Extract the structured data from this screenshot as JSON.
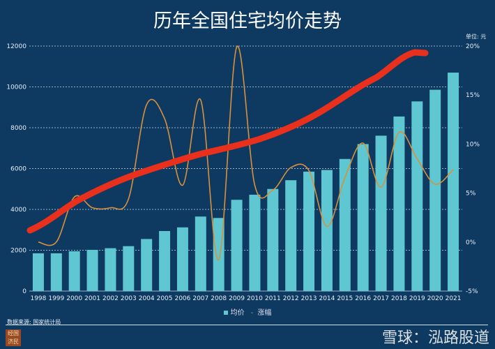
{
  "chart_data": {
    "type": "bar+line",
    "title": "历年全国住宅均价走势",
    "unit_label": "单位: 元",
    "categories": [
      "1998",
      "1999",
      "2000",
      "2001",
      "2002",
      "2003",
      "2004",
      "2005",
      "2006",
      "2007",
      "2008",
      "2009",
      "2010",
      "2011",
      "2012",
      "2013",
      "2014",
      "2015",
      "2016",
      "2017",
      "2018",
      "2019",
      "2020",
      "2021"
    ],
    "series": [
      {
        "name": "均价",
        "type": "bar",
        "axis": "left",
        "color": "#5fc7d1",
        "values": [
          1850,
          1850,
          1950,
          2020,
          2100,
          2200,
          2550,
          2940,
          3120,
          3650,
          3580,
          4470,
          4720,
          5000,
          5430,
          5850,
          5930,
          6470,
          7200,
          7610,
          8550,
          9290,
          9860,
          10700
        ]
      },
      {
        "name": "涨幅",
        "type": "line",
        "axis": "right",
        "color": "#d9913a",
        "values": [
          0.0,
          0.0,
          4.6,
          3.5,
          3.5,
          4.4,
          14.0,
          12.6,
          5.8,
          14.5,
          -1.8,
          19.9,
          5.8,
          5.3,
          7.6,
          7.3,
          1.6,
          6.6,
          10.1,
          5.6,
          11.2,
          8.5,
          5.9,
          7.4
        ]
      }
    ],
    "left_axis": {
      "ylim": [
        0,
        12000
      ],
      "ticks": [
        "0",
        "2000",
        "4000",
        "6000",
        "8000",
        "10000",
        "12000"
      ]
    },
    "right_axis": {
      "ylim": [
        -5,
        20
      ],
      "ticks": [
        "-5%",
        "0%",
        "5%",
        "10%",
        "15%",
        "20%"
      ]
    },
    "grid": true,
    "legend": "bottom",
    "annotation": {
      "type": "hand-drawn trend stroke",
      "color": "#e8301c"
    }
  },
  "source": "数据来源: 国家统计局",
  "watermark": "雪球：泓路股道",
  "seal_text": "经国济民"
}
